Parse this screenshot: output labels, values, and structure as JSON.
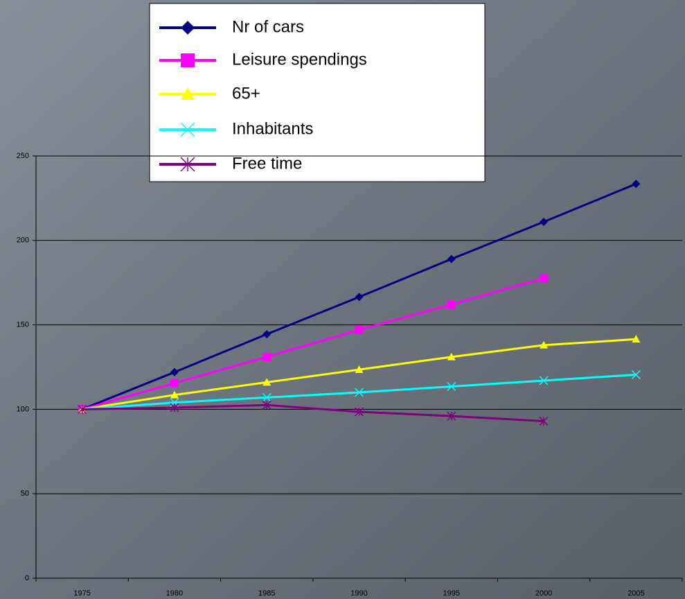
{
  "chart_data": {
    "type": "line",
    "categories": [
      "1975",
      "1980",
      "1985",
      "1990",
      "1995",
      "2000",
      "2005"
    ],
    "series": [
      {
        "name": "Nr of cars",
        "color": "#000080",
        "marker": "diamond",
        "values": [
          100,
          122,
          144.5,
          166.5,
          189,
          211,
          233.5
        ]
      },
      {
        "name": "Leisure spendings",
        "color": "#ff00ff",
        "marker": "square",
        "values": [
          100,
          115.5,
          131,
          147,
          162,
          177.5,
          null
        ]
      },
      {
        "name": "65+",
        "color": "#ffff00",
        "marker": "triangle",
        "values": [
          100,
          108.5,
          116,
          123.5,
          131,
          138,
          141.5
        ]
      },
      {
        "name": "Inhabitants",
        "color": "#00ffff",
        "marker": "x",
        "values": [
          100,
          104,
          107,
          110,
          113.5,
          117,
          120.5
        ]
      },
      {
        "name": "Free time",
        "color": "#800080",
        "marker": "asterisk",
        "values": [
          100,
          101,
          102.5,
          98.5,
          96,
          93,
          null
        ]
      }
    ],
    "ylim": [
      0,
      250
    ],
    "yticks": [
      0,
      50,
      100,
      150,
      200,
      250
    ],
    "grid": true
  }
}
